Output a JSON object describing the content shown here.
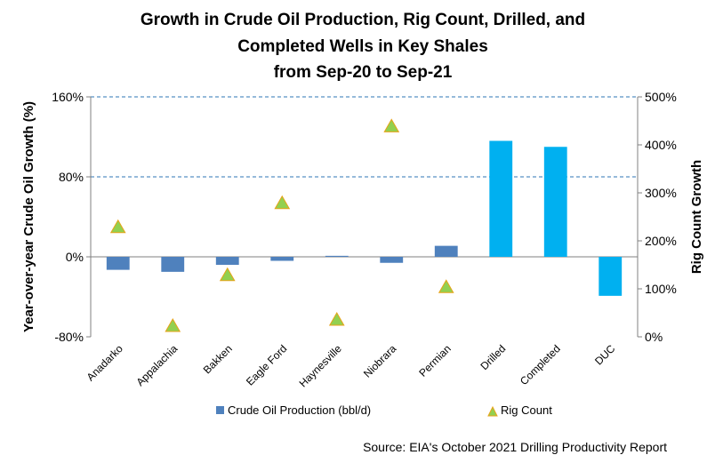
{
  "chart_data": {
    "type": "bar",
    "title_lines": [
      "Growth in Crude Oil Production, Rig Count,  Drilled, and",
      "Completed Wells in Key Shales",
      "from Sep-20 to Sep-21"
    ],
    "ylabel_left": "Year-over-year Crude Oil Growth (%)",
    "ylabel_right": "Rig Count Growth",
    "categories": [
      "Anadarko",
      "Appalachia",
      "Bakken",
      "Eagle Ford",
      "Haynesville",
      "Niobrara",
      "Permian",
      "Drilled",
      "Completed",
      "DUC"
    ],
    "left_axis": {
      "min": -80,
      "max": 160,
      "ticks": [
        -80,
        0,
        80,
        160
      ],
      "tick_labels": [
        "-80%",
        "0%",
        "80%",
        "160%"
      ]
    },
    "right_axis": {
      "min": 0,
      "max": 500,
      "ticks": [
        0,
        100,
        200,
        300,
        400,
        500
      ],
      "tick_labels": [
        "0%",
        "100%",
        "200%",
        "300%",
        "400%",
        "500%"
      ]
    },
    "gridlines": [
      80,
      160
    ],
    "series": [
      {
        "name": "Crude Oil Production (bbl/d)",
        "kind": "bar",
        "axis": "left",
        "color": "#4F81BD",
        "values": [
          -13,
          -15,
          -8,
          -4,
          1,
          -6,
          11,
          null,
          null,
          null
        ]
      },
      {
        "kind": "bar",
        "axis": "left",
        "color": "#00B0F0",
        "values": [
          null,
          null,
          null,
          null,
          null,
          null,
          null,
          116,
          110,
          -39
        ]
      },
      {
        "name": "Rig Count",
        "kind": "marker",
        "axis": "right",
        "color": "#92D050",
        "stroke": "#E8A317",
        "values": [
          230,
          24,
          130,
          280,
          37,
          440,
          105,
          null,
          null,
          null
        ]
      }
    ],
    "legend_position": "bottom"
  },
  "source": "Source: EIA's October 2021 Drilling Productivity Report"
}
